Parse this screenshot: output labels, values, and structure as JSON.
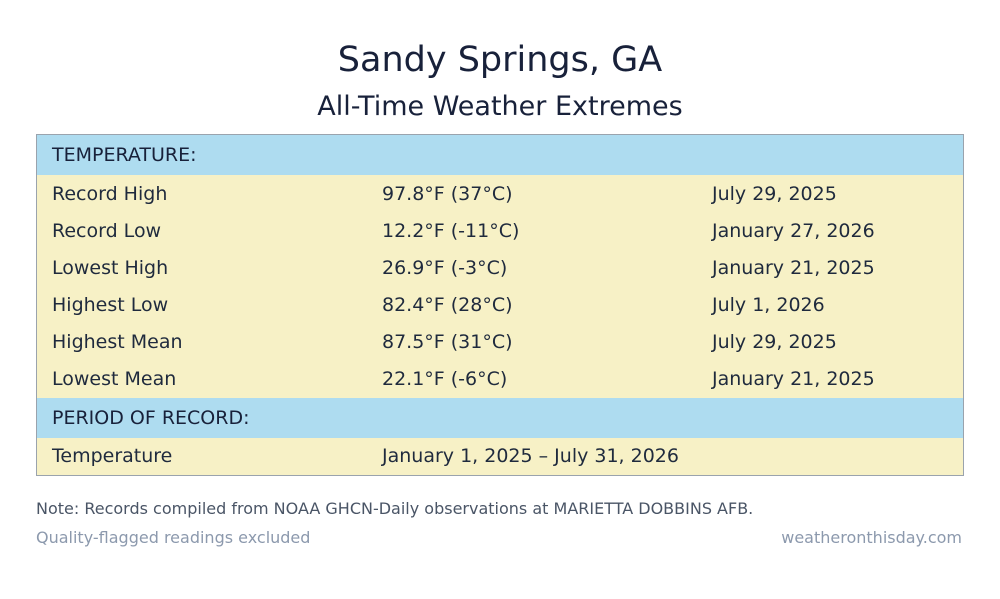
{
  "title": "Sandy Springs, GA",
  "subtitle": "All-Time Weather Extremes",
  "temperature_section": {
    "header": "TEMPERATURE:",
    "rows": [
      {
        "label": "Record High",
        "value": "97.8°F (37°C)",
        "date": "July 29, 2025"
      },
      {
        "label": "Record Low",
        "value": "12.2°F (-11°C)",
        "date": "January 27, 2026"
      },
      {
        "label": "Lowest High",
        "value": "26.9°F (-3°C)",
        "date": "January 21, 2025"
      },
      {
        "label": "Highest Low",
        "value": "82.4°F (28°C)",
        "date": "July 1, 2026"
      },
      {
        "label": "Highest Mean",
        "value": "87.5°F (31°C)",
        "date": "July 29, 2025"
      },
      {
        "label": "Lowest Mean",
        "value": "22.1°F (-6°C)",
        "date": "January 21, 2025"
      }
    ]
  },
  "period_section": {
    "header": "PERIOD OF RECORD:",
    "rows": [
      {
        "label": "Temperature",
        "value": "January 1, 2025 – July 31, 2026"
      }
    ]
  },
  "note": "Note: Records compiled from NOAA GHCN-Daily observations at MARIETTA DOBBINS AFB.",
  "footer": {
    "left": "Quality-flagged readings excluded",
    "right": "weatheronthisday.com"
  },
  "colors": {
    "section_header_bg": "#aedcf0",
    "row_bg": "#f7f1c6",
    "footer_text": "#8c99ad"
  }
}
